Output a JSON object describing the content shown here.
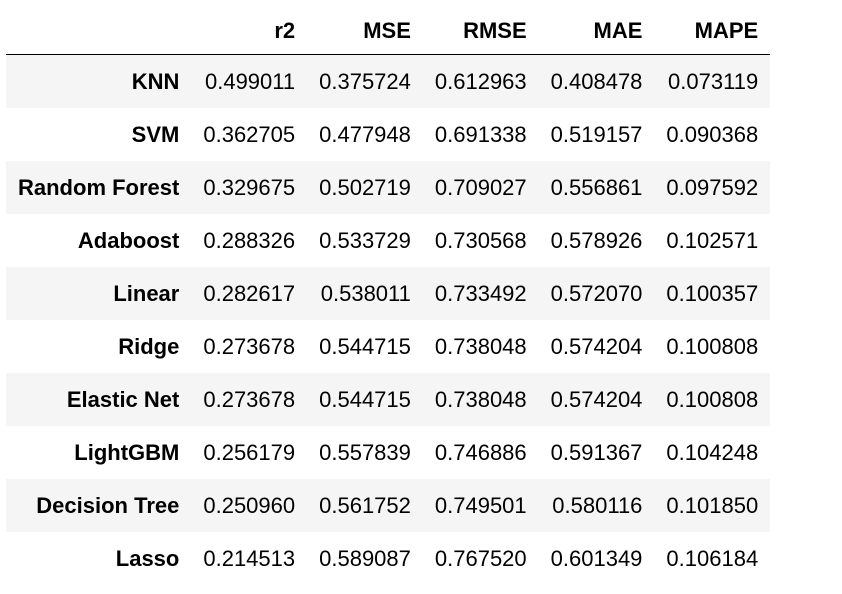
{
  "table": {
    "columns": [
      "r2",
      "MSE",
      "RMSE",
      "MAE",
      "MAPE"
    ],
    "rows": [
      {
        "index": "KNN",
        "values": [
          "0.499011",
          "0.375724",
          "0.612963",
          "0.408478",
          "0.073119"
        ]
      },
      {
        "index": "SVM",
        "values": [
          "0.362705",
          "0.477948",
          "0.691338",
          "0.519157",
          "0.090368"
        ]
      },
      {
        "index": "Random Forest",
        "values": [
          "0.329675",
          "0.502719",
          "0.709027",
          "0.556861",
          "0.097592"
        ]
      },
      {
        "index": "Adaboost",
        "values": [
          "0.288326",
          "0.533729",
          "0.730568",
          "0.578926",
          "0.102571"
        ]
      },
      {
        "index": "Linear",
        "values": [
          "0.282617",
          "0.538011",
          "0.733492",
          "0.572070",
          "0.100357"
        ]
      },
      {
        "index": "Ridge",
        "values": [
          "0.273678",
          "0.544715",
          "0.738048",
          "0.574204",
          "0.100808"
        ]
      },
      {
        "index": "Elastic Net",
        "values": [
          "0.273678",
          "0.544715",
          "0.738048",
          "0.574204",
          "0.100808"
        ]
      },
      {
        "index": "LightGBM",
        "values": [
          "0.256179",
          "0.557839",
          "0.746886",
          "0.591367",
          "0.104248"
        ]
      },
      {
        "index": "Decision Tree",
        "values": [
          "0.250960",
          "0.561752",
          "0.749501",
          "0.580116",
          "0.101850"
        ]
      },
      {
        "index": "Lasso",
        "values": [
          "0.214513",
          "0.589087",
          "0.767520",
          "0.601349",
          "0.106184"
        ]
      }
    ]
  },
  "colors": {
    "stripe": "#f5f5f5",
    "background": "#ffffff",
    "text": "#000000"
  }
}
